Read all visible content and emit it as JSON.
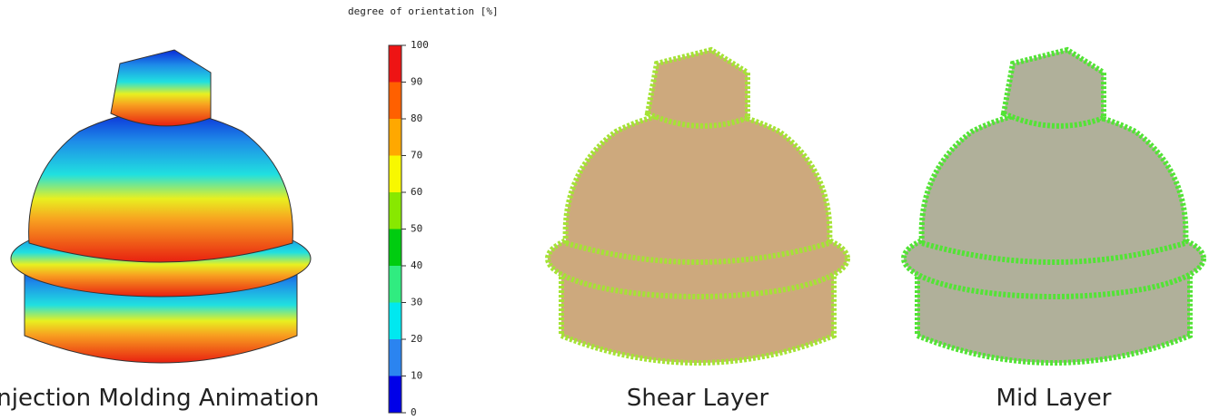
{
  "colorbar": {
    "title": "degree of orientation [%]",
    "ticks": [
      0,
      10,
      20,
      30,
      40,
      50,
      60,
      70,
      80,
      90,
      100
    ],
    "colors": [
      "#0000e8",
      "#2b84f0",
      "#00e8f0",
      "#30ec80",
      "#00cc10",
      "#88e800",
      "#f8f800",
      "#ffa800",
      "#ff6000",
      "#ee1414"
    ]
  },
  "captions": [
    "Injection Molding Animation",
    "Shear Layer",
    "Mid Layer"
  ]
}
